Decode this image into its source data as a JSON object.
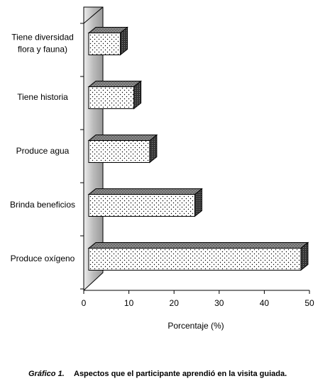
{
  "chart_data": {
    "type": "bar",
    "orientation": "horizontal",
    "categories": [
      "Tiene diversidad\nflora y fauna)",
      "Tiene historia",
      "Produce agua",
      "Brinda beneficios",
      "Produce oxígeno"
    ],
    "values": [
      7,
      10,
      13.5,
      23.5,
      47
    ],
    "xlim": [
      0,
      50
    ],
    "xticks": [
      0,
      10,
      20,
      30,
      40,
      50
    ],
    "xlabel": "Porcentaje (%)",
    "caption_label": "Gráfico 1.",
    "caption": "Aspectos que el participante aprendió en la visita guiada."
  }
}
